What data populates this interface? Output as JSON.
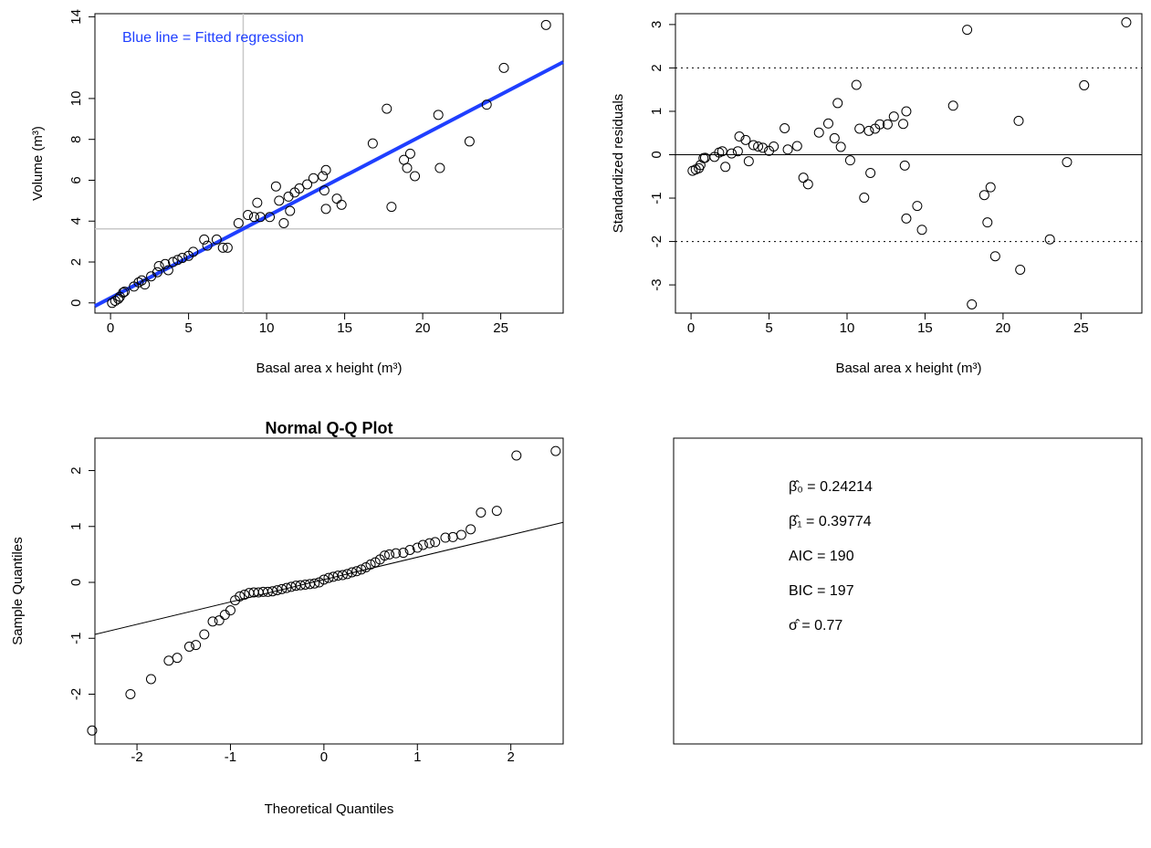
{
  "chart_data": [
    {
      "type": "scatter",
      "xlabel": "Basal area x height (m³)",
      "ylabel": "Volume (m³)",
      "x": [
        0.1,
        0.3,
        0.5,
        0.6,
        0.8,
        0.9,
        1.5,
        1.8,
        2.0,
        2.2,
        2.6,
        3.0,
        3.1,
        3.5,
        3.7,
        4.0,
        4.3,
        4.6,
        5.0,
        5.3,
        6.0,
        6.2,
        6.8,
        7.2,
        7.5,
        8.2,
        8.8,
        9.2,
        9.4,
        9.6,
        10.2,
        10.6,
        10.8,
        11.1,
        11.4,
        11.5,
        11.8,
        12.1,
        12.6,
        13.0,
        13.6,
        13.7,
        13.8,
        13.8,
        14.5,
        14.8,
        16.8,
        17.7,
        18.0,
        18.8,
        19.0,
        19.2,
        19.5,
        21.0,
        21.1,
        23.0,
        24.1,
        25.2,
        27.9
      ],
      "values": [
        0.0,
        0.1,
        0.2,
        0.3,
        0.5,
        0.55,
        0.8,
        1.0,
        1.1,
        0.9,
        1.3,
        1.5,
        1.8,
        1.9,
        1.6,
        2.0,
        2.1,
        2.2,
        2.3,
        2.5,
        3.1,
        2.8,
        3.1,
        2.7,
        2.7,
        3.9,
        4.3,
        4.2,
        4.9,
        4.2,
        4.2,
        5.7,
        5.0,
        3.9,
        5.2,
        4.5,
        5.4,
        5.6,
        5.8,
        6.1,
        6.2,
        5.5,
        6.5,
        4.6,
        5.1,
        4.8,
        7.8,
        9.5,
        4.7,
        7.0,
        6.6,
        7.3,
        6.2,
        9.2,
        6.6,
        7.9,
        9.7,
        11.5,
        13.6
      ],
      "color": "#000000",
      "xlim": [
        -1,
        29
      ],
      "xticks": [
        0,
        5,
        10,
        15,
        20,
        25
      ],
      "ylim": [
        -0.5,
        14.15
      ],
      "yticks": [
        0,
        2,
        4,
        6,
        8,
        10,
        14
      ],
      "fit": {
        "intercept": 0.242,
        "slope": 0.398,
        "color": "#1f3fff"
      },
      "vline": 8.5,
      "hline": 3.62,
      "ref_color": "#c8c8c8",
      "annotation": "Blue line = Fitted regression",
      "annotation_color": "#1f3fff"
    },
    {
      "type": "scatter",
      "xlabel": "Basal area x height (m³)",
      "ylabel": "Standardized residuals",
      "x": [
        0.1,
        0.3,
        0.5,
        0.6,
        0.8,
        0.9,
        1.5,
        1.8,
        2.0,
        2.2,
        2.6,
        3.0,
        3.1,
        3.5,
        3.7,
        4.0,
        4.3,
        4.6,
        5.0,
        5.3,
        6.0,
        6.2,
        6.8,
        7.2,
        7.5,
        8.2,
        8.8,
        9.2,
        9.4,
        9.6,
        10.2,
        10.6,
        10.8,
        11.1,
        11.4,
        11.5,
        11.8,
        12.1,
        12.6,
        13.0,
        13.6,
        13.7,
        13.8,
        13.8,
        14.5,
        14.8,
        16.8,
        17.7,
        18.0,
        18.8,
        19.0,
        19.2,
        19.5,
        21.0,
        21.1,
        23.0,
        24.1,
        25.2,
        27.9
      ],
      "values": [
        -0.37,
        -0.34,
        -0.31,
        -0.24,
        -0.08,
        -0.07,
        -0.05,
        0.05,
        0.08,
        -0.28,
        0.03,
        0.08,
        0.42,
        0.34,
        -0.15,
        0.22,
        0.19,
        0.16,
        0.09,
        0.19,
        0.61,
        0.12,
        0.2,
        -0.53,
        -0.68,
        0.51,
        0.72,
        0.38,
        1.19,
        0.18,
        -0.13,
        1.61,
        0.6,
        -0.99,
        0.55,
        -0.42,
        0.6,
        0.7,
        0.7,
        0.88,
        0.71,
        -0.25,
        1.0,
        -1.47,
        -1.18,
        -1.73,
        1.13,
        2.88,
        -3.45,
        -0.93,
        -1.56,
        -0.75,
        -2.34,
        0.78,
        -2.65,
        -1.95,
        -0.17,
        1.6,
        3.05
      ],
      "color": "#000000",
      "xlim": [
        -1,
        28.9
      ],
      "xticks": [
        0,
        5,
        10,
        15,
        20,
        25
      ],
      "ylim": [
        -3.65,
        3.25
      ],
      "yticks": [
        -3,
        -2,
        -1,
        0,
        1,
        2,
        3
      ],
      "hlines": [
        {
          "value": 2,
          "style": "dotted"
        },
        {
          "value": -2,
          "style": "dotted"
        },
        {
          "value": 0,
          "style": "solid"
        }
      ]
    },
    {
      "type": "scatter",
      "title": "Normal Q-Q Plot",
      "xlabel": "Theoretical Quantiles",
      "ylabel": "Sample Quantiles",
      "x": [
        -2.48,
        -2.07,
        -1.85,
        -1.66,
        -1.57,
        -1.44,
        -1.37,
        -1.28,
        -1.19,
        -1.12,
        -1.06,
        -1.0,
        -0.95,
        -0.9,
        -0.85,
        -0.8,
        -0.75,
        -0.7,
        -0.65,
        -0.6,
        -0.55,
        -0.5,
        -0.45,
        -0.4,
        -0.35,
        -0.3,
        -0.25,
        -0.2,
        -0.15,
        -0.1,
        -0.05,
        0.0,
        0.05,
        0.1,
        0.15,
        0.2,
        0.25,
        0.3,
        0.35,
        0.4,
        0.45,
        0.5,
        0.55,
        0.6,
        0.65,
        0.7,
        0.77,
        0.85,
        0.92,
        1.0,
        1.06,
        1.13,
        1.19,
        1.3,
        1.38,
        1.47,
        1.57,
        1.68,
        1.85,
        2.06,
        2.48
      ],
      "values": [
        -2.65,
        -2.0,
        -1.73,
        -1.4,
        -1.35,
        -1.15,
        -1.12,
        -0.93,
        -0.7,
        -0.68,
        -0.58,
        -0.5,
        -0.32,
        -0.25,
        -0.22,
        -0.19,
        -0.18,
        -0.18,
        -0.17,
        -0.17,
        -0.16,
        -0.14,
        -0.12,
        -0.1,
        -0.08,
        -0.06,
        -0.05,
        -0.04,
        -0.03,
        -0.02,
        0.0,
        0.05,
        0.08,
        0.1,
        0.12,
        0.13,
        0.15,
        0.18,
        0.2,
        0.23,
        0.27,
        0.32,
        0.36,
        0.41,
        0.48,
        0.5,
        0.52,
        0.53,
        0.58,
        0.62,
        0.67,
        0.7,
        0.72,
        0.8,
        0.81,
        0.85,
        0.95,
        1.25,
        1.28,
        2.27,
        2.35
      ],
      "color": "#000000",
      "xlim": [
        -2.45,
        2.56
      ],
      "xticks": [
        -2,
        -1,
        0,
        1,
        2
      ],
      "ylim": [
        -2.89,
        2.58
      ],
      "yticks": [
        -2,
        -1,
        0,
        1,
        2
      ],
      "fit": {
        "intercept": 0.05,
        "slope": 0.4,
        "color": "#000000"
      }
    },
    {
      "type": "text",
      "lines": [
        "β̂₀ = 0.24214",
        "β̂₁ = 0.39774",
        "AIC = 190",
        "BIC = 197",
        "σ̂ = 0.77"
      ]
    }
  ]
}
